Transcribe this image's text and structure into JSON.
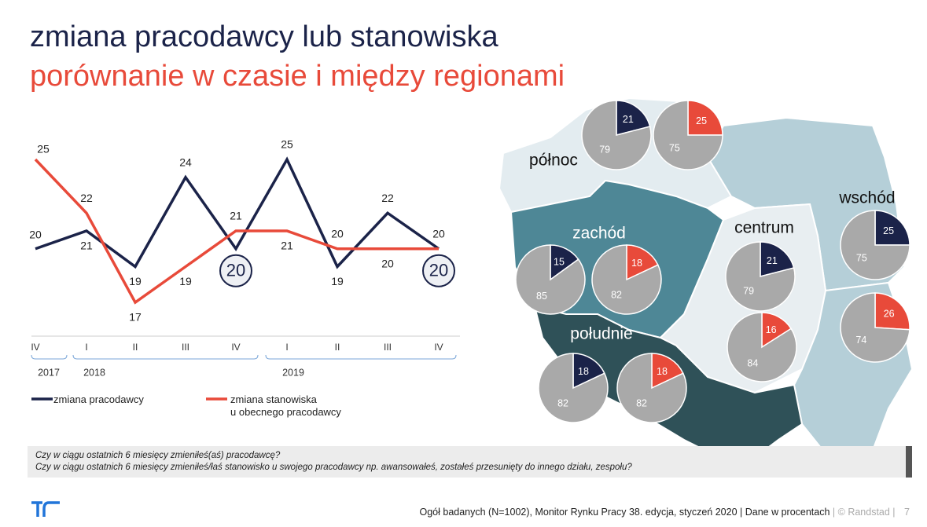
{
  "title": "zmiana pracodawcy lub stanowiska",
  "subtitle": "porównanie w czasie i między regionami",
  "chart_data": [
    {
      "type": "line",
      "categories": [
        "IV",
        "I",
        "II",
        "III",
        "IV",
        "I",
        "II",
        "III",
        "IV"
      ],
      "years": [
        "2017",
        "2018",
        "2019"
      ],
      "series": [
        {
          "name": "zmiana pracodawcy",
          "color": "#1b2349",
          "values": [
            20,
            21,
            19,
            24,
            20,
            25,
            19,
            22,
            20
          ]
        },
        {
          "name": "zmiana stanowiska\nu obecnego pracodawcy",
          "color": "#e84a3a",
          "values": [
            25,
            22,
            17,
            19,
            21,
            21,
            20,
            20,
            20
          ]
        }
      ]
    },
    {
      "type": "pie",
      "regions": [
        {
          "name": "północ",
          "pies": [
            {
              "values": [
                21,
                79
              ],
              "colors": [
                "#1b2349",
                "#a9a9a9"
              ]
            },
            {
              "values": [
                25,
                75
              ],
              "colors": [
                "#e84a3a",
                "#a9a9a9"
              ]
            }
          ]
        },
        {
          "name": "zachód",
          "pies": [
            {
              "values": [
                15,
                85
              ],
              "colors": [
                "#1b2349",
                "#a9a9a9"
              ]
            },
            {
              "values": [
                18,
                82
              ],
              "colors": [
                "#e84a3a",
                "#a9a9a9"
              ]
            }
          ]
        },
        {
          "name": "południe",
          "pies": [
            {
              "values": [
                18,
                82
              ],
              "colors": [
                "#1b2349",
                "#a9a9a9"
              ]
            },
            {
              "values": [
                18,
                82
              ],
              "colors": [
                "#e84a3a",
                "#a9a9a9"
              ]
            }
          ]
        },
        {
          "name": "centrum",
          "pies": [
            {
              "values": [
                21,
                79
              ],
              "colors": [
                "#1b2349",
                "#a9a9a9"
              ]
            },
            {
              "values": [
                16,
                84
              ],
              "colors": [
                "#e84a3a",
                "#a9a9a9"
              ]
            }
          ]
        },
        {
          "name": "wschód",
          "pies": [
            {
              "values": [
                25,
                75
              ],
              "colors": [
                "#1b2349",
                "#a9a9a9"
              ]
            },
            {
              "values": [
                26,
                74
              ],
              "colors": [
                "#e84a3a",
                "#a9a9a9"
              ]
            }
          ]
        }
      ]
    }
  ],
  "questions": [
    "Czy w ciągu ostatnich 6 miesięcy zmieniłeś(aś) pracodawcę?",
    "Czy w ciągu ostatnich 6 miesięcy zmieniłeś/łaś stanowisko u swojego pracodawcy np. awansowałeś, zostałeś przesunięty do innego działu, zespołu?"
  ],
  "footer": {
    "source": "Ogół badanych (N=1002), Monitor Rynku Pracy 38. edycja, styczeń 2020 | Dane w procentach",
    "copyright": "| © Randstad |",
    "page": "7"
  }
}
